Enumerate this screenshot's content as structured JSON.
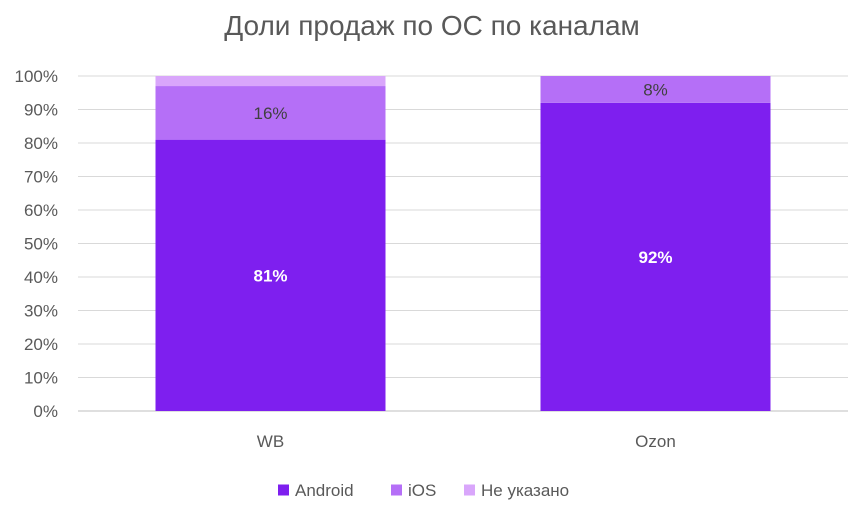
{
  "chart_data": {
    "type": "bar",
    "stacked": true,
    "title": "Доли продаж по ОС по каналам",
    "categories": [
      "WB",
      "Ozon"
    ],
    "series": [
      {
        "name": "Android",
        "values": [
          81,
          92
        ],
        "labels": [
          "81%",
          "92%"
        ],
        "color": "#7e1fef"
      },
      {
        "name": "iOS",
        "values": [
          16,
          8
        ],
        "labels": [
          "16%",
          "8%"
        ],
        "color": "#b56ff7"
      },
      {
        "name": "Не указано",
        "values": [
          3,
          0
        ],
        "labels": [
          "",
          ""
        ],
        "color": "#d9a6fb"
      }
    ],
    "ylim": [
      0,
      100
    ],
    "yticks": [
      "0%",
      "10%",
      "20%",
      "30%",
      "40%",
      "50%",
      "60%",
      "70%",
      "80%",
      "90%",
      "100%"
    ],
    "grid": true,
    "legend": "bottom"
  }
}
